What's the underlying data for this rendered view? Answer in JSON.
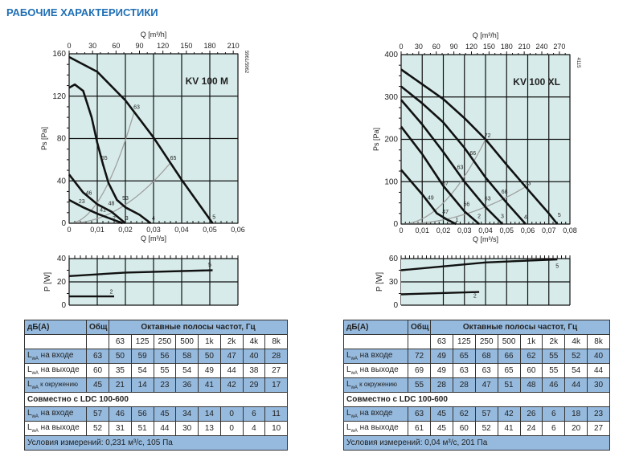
{
  "title": "РАБОЧИЕ ХАРАКТЕРИСТИКИ",
  "colors": {
    "title": "#1f6fb5",
    "plot_bg": "#d7ecea",
    "table_blue": "#96bade",
    "fan_curve": "#111111",
    "system_curve": "#a0a0a0"
  },
  "chart_data": [
    {
      "type": "line",
      "model": "KV 100 M",
      "code": "5961/5962",
      "xlabel": "Q [m³/s]",
      "x2label": "Q [m³/h]",
      "ylabel": "Ps [Pa]",
      "xlim": [
        0,
        0.06
      ],
      "ylim": [
        0,
        160
      ],
      "xticks": [
        "0",
        "0,01",
        "0,02",
        "0,03",
        "0,04",
        "0,05",
        "0,06"
      ],
      "x2ticks": [
        "0",
        "30",
        "60",
        "90",
        "120",
        "150",
        "180",
        "210"
      ],
      "yticks": [
        "0",
        "40",
        "80",
        "120",
        "160"
      ],
      "grid": true,
      "series": [
        {
          "name": "5",
          "points": [
            [
              0,
              157
            ],
            [
              0.01,
              143
            ],
            [
              0.02,
              116
            ],
            [
              0.03,
              81
            ],
            [
              0.04,
              41
            ],
            [
              0.051,
              0
            ]
          ]
        },
        {
          "name": "4",
          "points": [
            [
              0,
              128
            ],
            [
              0.002,
              131
            ],
            [
              0.005,
              125
            ],
            [
              0.008,
              100
            ],
            [
              0.01,
              76
            ],
            [
              0.012,
              56
            ],
            [
              0.014,
              38
            ],
            [
              0.017,
              22
            ],
            [
              0.02,
              15
            ],
            [
              0.025,
              8
            ],
            [
              0.029,
              0
            ]
          ]
        },
        {
          "name": "3",
          "points": [
            [
              0,
              46
            ],
            [
              0.005,
              29
            ],
            [
              0.01,
              18
            ],
            [
              0.015,
              11
            ],
            [
              0.02,
              0
            ]
          ]
        },
        {
          "name": "2",
          "points": [
            [
              0,
              22
            ],
            [
              0.005,
              15
            ],
            [
              0.01,
              9
            ],
            [
              0.015,
              4
            ],
            [
              0.019,
              0
            ]
          ]
        }
      ],
      "system_curves": [
        196600,
        44000
      ],
      "point_labels": [
        {
          "text": "63",
          "q": 0.024,
          "p": 108
        },
        {
          "text": "65",
          "q": 0.037,
          "p": 60
        },
        {
          "text": "55",
          "q": 0.0125,
          "p": 60
        },
        {
          "text": "46",
          "q": 0.007,
          "p": 27
        },
        {
          "text": "23",
          "q": 0.0045,
          "p": 19
        },
        {
          "text": "48",
          "q": 0.015,
          "p": 17
        },
        {
          "text": "41",
          "q": 0.012,
          "p": 11
        },
        {
          "text": "53",
          "q": 0.02,
          "p": 22
        },
        {
          "text": "2",
          "q": 0.016,
          "p": 3
        },
        {
          "text": "3",
          "q": 0.0205,
          "p": 3
        },
        {
          "text": "4",
          "q": 0.03,
          "p": 3
        },
        {
          "text": "5",
          "q": 0.0515,
          "p": 4
        }
      ],
      "power": {
        "ylabel": "P [W]",
        "ylim": [
          0,
          40
        ],
        "yticks": [
          "0",
          "20",
          "40"
        ],
        "series": [
          {
            "name": "5",
            "points": [
              [
                0,
                25
              ],
              [
                0.02,
                28
              ],
              [
                0.051,
                30
              ]
            ]
          },
          {
            "name": "2",
            "points": [
              [
                0,
                7.5
              ],
              [
                0.016,
                7.5
              ]
            ]
          }
        ],
        "labels": [
          {
            "text": "5",
            "q": 0.05,
            "p": 33
          },
          {
            "text": "2",
            "q": 0.015,
            "p": 10
          }
        ]
      }
    },
    {
      "type": "line",
      "model": "KV 100 XL",
      "code": "4115",
      "xlabel": "Q [m³/s]",
      "x2label": "Q [m³/h]",
      "ylabel": "Ps [Pa]",
      "xlim": [
        0,
        0.08
      ],
      "ylim": [
        0,
        400
      ],
      "xticks": [
        "0",
        "0,01",
        "0,02",
        "0,03",
        "0,04",
        "0,05",
        "0,06",
        "0,07",
        "0,08"
      ],
      "x2ticks": [
        "0",
        "30",
        "60",
        "90",
        "120",
        "150",
        "180",
        "210",
        "240",
        "270"
      ],
      "yticks": [
        "0",
        "100",
        "200",
        "300",
        "400"
      ],
      "grid": true,
      "series": [
        {
          "name": "5",
          "points": [
            [
              0,
              365
            ],
            [
              0.01,
              330
            ],
            [
              0.02,
              295
            ],
            [
              0.03,
              250
            ],
            [
              0.04,
              200
            ],
            [
              0.05,
              140
            ],
            [
              0.06,
              82
            ],
            [
              0.07,
              25
            ],
            [
              0.074,
              0
            ]
          ]
        },
        {
          "name": "4",
          "points": [
            [
              0,
              325
            ],
            [
              0.01,
              285
            ],
            [
              0.02,
              240
            ],
            [
              0.03,
              180
            ],
            [
              0.04,
              110
            ],
            [
              0.05,
              50
            ],
            [
              0.059,
              0
            ]
          ]
        },
        {
          "name": "3",
          "points": [
            [
              0,
              293
            ],
            [
              0.01,
              235
            ],
            [
              0.02,
              170
            ],
            [
              0.03,
              100
            ],
            [
              0.04,
              40
            ],
            [
              0.048,
              0
            ]
          ]
        },
        {
          "name": "2",
          "points": [
            [
              0,
              230
            ],
            [
              0.01,
              165
            ],
            [
              0.02,
              90
            ],
            [
              0.03,
              30
            ],
            [
              0.037,
              0
            ]
          ]
        },
        {
          "name": "1",
          "points": [
            [
              0,
              128
            ],
            [
              0.01,
              70
            ],
            [
              0.017,
              25
            ],
            [
              0.022,
              10
            ],
            [
              0.026,
              0
            ]
          ]
        }
      ],
      "system_curves": [
        125000,
        25300
      ],
      "point_labels": [
        {
          "text": "72",
          "q": 0.041,
          "p": 205
        },
        {
          "text": "73",
          "q": 0.06,
          "p": 92
        },
        {
          "text": "66",
          "q": 0.034,
          "p": 163
        },
        {
          "text": "63",
          "q": 0.028,
          "p": 130
        },
        {
          "text": "57",
          "q": 0.021,
          "p": 92
        },
        {
          "text": "49",
          "q": 0.014,
          "p": 58
        },
        {
          "text": "56",
          "q": 0.031,
          "p": 43
        },
        {
          "text": "63",
          "q": 0.041,
          "p": 56
        },
        {
          "text": "68",
          "q": 0.049,
          "p": 72
        },
        {
          "text": "47",
          "q": 0.021,
          "p": 25
        },
        {
          "text": "1",
          "q": 0.0265,
          "p": 6
        },
        {
          "text": "2",
          "q": 0.037,
          "p": 14
        },
        {
          "text": "3",
          "q": 0.048,
          "p": 14
        },
        {
          "text": "4",
          "q": 0.059,
          "p": 12
        },
        {
          "text": "5",
          "q": 0.075,
          "p": 17
        }
      ],
      "power": {
        "ylabel": "P [W]",
        "ylim": [
          0,
          60
        ],
        "yticks": [
          "0",
          "30",
          "60"
        ],
        "series": [
          {
            "name": "5",
            "points": [
              [
                0,
                45
              ],
              [
                0.02,
                50
              ],
              [
                0.04,
                55
              ],
              [
                0.074,
                59
              ]
            ]
          },
          {
            "name": "2",
            "points": [
              [
                0,
                14
              ],
              [
                0.037,
                17
              ]
            ]
          }
        ],
        "labels": [
          {
            "text": "5",
            "q": 0.074,
            "p": 48
          },
          {
            "text": "2",
            "q": 0.035,
            "p": 10
          }
        ]
      }
    }
  ],
  "tables": [
    {
      "header": {
        "unit": "дБ(А)",
        "total": "Общ",
        "bands_title": "Октавные полосы частот, Гц"
      },
      "bands": [
        "63",
        "125",
        "250",
        "500",
        "1k",
        "2k",
        "4k",
        "8k"
      ],
      "rows": [
        {
          "label": "на входе",
          "total": "63",
          "values": [
            "50",
            "59",
            "56",
            "58",
            "50",
            "47",
            "40",
            "28"
          ],
          "blue": true
        },
        {
          "label": "на выходе",
          "total": "60",
          "values": [
            "35",
            "54",
            "55",
            "54",
            "49",
            "44",
            "38",
            "27"
          ],
          "blue": false
        },
        {
          "label": "к окружению",
          "total": "45",
          "values": [
            "21",
            "14",
            "23",
            "36",
            "41",
            "42",
            "29",
            "17"
          ],
          "blue": true
        }
      ],
      "ldc_title": "Совместно с LDC 100-600",
      "ldc_rows": [
        {
          "label": "на входе",
          "total": "57",
          "values": [
            "46",
            "56",
            "45",
            "34",
            "14",
            "0",
            "6",
            "11"
          ],
          "blue": true
        },
        {
          "label": "на выходе",
          "total": "52",
          "values": [
            "31",
            "51",
            "44",
            "30",
            "13",
            "0",
            "4",
            "10"
          ],
          "blue": false
        }
      ],
      "conditions": "Условия измерений: 0,231 м³/с, 105 Па"
    },
    {
      "header": {
        "unit": "дБ(А)",
        "total": "Общ",
        "bands_title": "Октавные полосы частот, Гц"
      },
      "bands": [
        "63",
        "125",
        "250",
        "500",
        "1k",
        "2k",
        "4k",
        "8k"
      ],
      "rows": [
        {
          "label": "на входе",
          "total": "72",
          "values": [
            "49",
            "65",
            "68",
            "66",
            "62",
            "55",
            "52",
            "40"
          ],
          "blue": true
        },
        {
          "label": "на выходе",
          "total": "69",
          "values": [
            "49",
            "63",
            "63",
            "65",
            "60",
            "55",
            "54",
            "44"
          ],
          "blue": false
        },
        {
          "label": "к окружению",
          "total": "55",
          "values": [
            "28",
            "28",
            "47",
            "51",
            "48",
            "46",
            "44",
            "30"
          ],
          "blue": true
        }
      ],
      "ldc_title": "Совместно с LDC 100-600",
      "ldc_rows": [
        {
          "label": "на входе",
          "total": "63",
          "values": [
            "45",
            "62",
            "57",
            "42",
            "26",
            "6",
            "18",
            "23"
          ],
          "blue": true
        },
        {
          "label": "на выходе",
          "total": "61",
          "values": [
            "45",
            "60",
            "52",
            "41",
            "24",
            "6",
            "20",
            "27"
          ],
          "blue": false
        }
      ],
      "conditions": "Условия измерений: 0,04 м³/с, 201 Па"
    }
  ]
}
